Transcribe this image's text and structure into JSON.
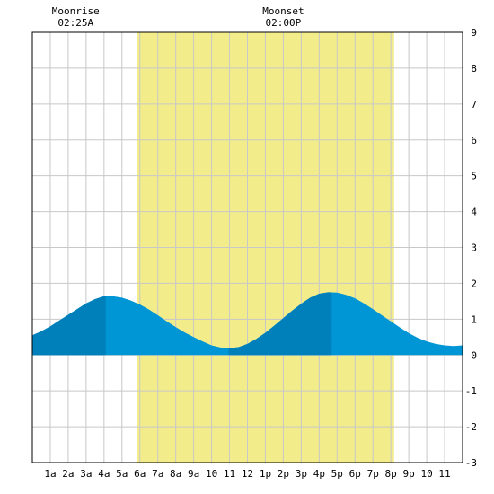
{
  "chart_data": {
    "type": "area",
    "title": "",
    "xlabel": "",
    "ylabel": "",
    "xlim": [
      0,
      24
    ],
    "ylim": [
      -3,
      9
    ],
    "x_tick_labels": [
      {
        "x": 1,
        "label": "1a"
      },
      {
        "x": 2,
        "label": "2a"
      },
      {
        "x": 3,
        "label": "3a"
      },
      {
        "x": 4,
        "label": "4a"
      },
      {
        "x": 5,
        "label": "5a"
      },
      {
        "x": 6,
        "label": "6a"
      },
      {
        "x": 7,
        "label": "7a"
      },
      {
        "x": 8,
        "label": "8a"
      },
      {
        "x": 9,
        "label": "9a"
      },
      {
        "x": 10,
        "label": "10"
      },
      {
        "x": 11,
        "label": "11"
      },
      {
        "x": 12,
        "label": "12"
      },
      {
        "x": 13,
        "label": "1p"
      },
      {
        "x": 14,
        "label": "2p"
      },
      {
        "x": 15,
        "label": "3p"
      },
      {
        "x": 16,
        "label": "4p"
      },
      {
        "x": 17,
        "label": "5p"
      },
      {
        "x": 18,
        "label": "6p"
      },
      {
        "x": 19,
        "label": "7p"
      },
      {
        "x": 20,
        "label": "8p"
      },
      {
        "x": 21,
        "label": "9p"
      },
      {
        "x": 22,
        "label": "10"
      },
      {
        "x": 23,
        "label": "11"
      }
    ],
    "y_ticks": [
      -3,
      -2,
      -1,
      0,
      1,
      2,
      3,
      4,
      5,
      6,
      7,
      8,
      9
    ],
    "grid": true,
    "daylight": {
      "start": 5.83,
      "end": 20.18,
      "color": "#f3ec8a"
    },
    "tide_extremes": [
      {
        "type": "high",
        "time": 4.1,
        "height": 1.65
      },
      {
        "type": "low",
        "time": 10.95,
        "height": 0.18
      },
      {
        "type": "high",
        "time": 16.7,
        "height": 1.75
      },
      {
        "type": "low",
        "time": 23.6,
        "height": 0.25
      }
    ],
    "series": [
      {
        "x": [
          0,
          0.5,
          1,
          1.5,
          2,
          2.5,
          3,
          3.5,
          4,
          4.5,
          5,
          5.5,
          6,
          6.5,
          7,
          7.5,
          8,
          8.5,
          9,
          9.5,
          10,
          10.5,
          11,
          11.5,
          12,
          12.5,
          13,
          13.5,
          14,
          14.5,
          15,
          15.5,
          16,
          16.5,
          17,
          17.5,
          18,
          18.5,
          19,
          19.5,
          20,
          20.5,
          21,
          21.5,
          22,
          22.5,
          23,
          23.5,
          24
        ],
        "y": [
          0.55,
          0.66,
          0.8,
          0.96,
          1.12,
          1.28,
          1.44,
          1.56,
          1.64,
          1.64,
          1.6,
          1.52,
          1.41,
          1.27,
          1.11,
          0.94,
          0.78,
          0.63,
          0.5,
          0.38,
          0.27,
          0.21,
          0.19,
          0.22,
          0.31,
          0.45,
          0.62,
          0.82,
          1.03,
          1.24,
          1.43,
          1.6,
          1.71,
          1.75,
          1.74,
          1.68,
          1.58,
          1.44,
          1.28,
          1.11,
          0.94,
          0.77,
          0.61,
          0.48,
          0.38,
          0.31,
          0.27,
          0.25,
          0.27
        ]
      }
    ],
    "colors": {
      "area": "#0096d6",
      "area_rising": "#0080bb",
      "grid": "#c8c8c8",
      "frame": "#000000"
    },
    "moon_events": [
      {
        "label": "Moonrise",
        "time_label": "02:25A",
        "x": 2.42
      },
      {
        "label": "Moonset",
        "time_label": "02:00P",
        "x": 14
      }
    ]
  }
}
